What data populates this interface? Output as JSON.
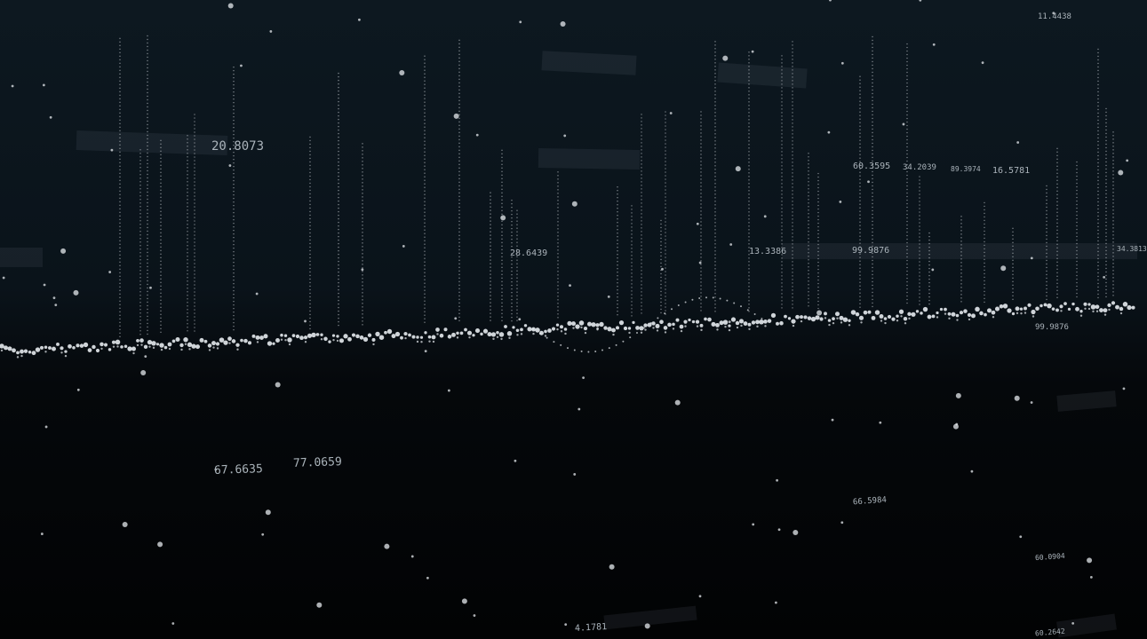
{
  "labels": [
    "11.4438",
    "20.8073",
    "28.6439",
    "60.3595",
    "34.2039",
    "89.3974",
    "16.5781",
    "13.3386",
    "99.9876",
    "34.3813",
    "99.9876",
    "67.6635",
    "77.0659",
    "66.5984",
    "60.0904",
    "4.1781",
    "60.2642"
  ],
  "colors": {
    "background": "#0a131a",
    "dots": "#e6eaee",
    "labels": "#aab3ba"
  }
}
